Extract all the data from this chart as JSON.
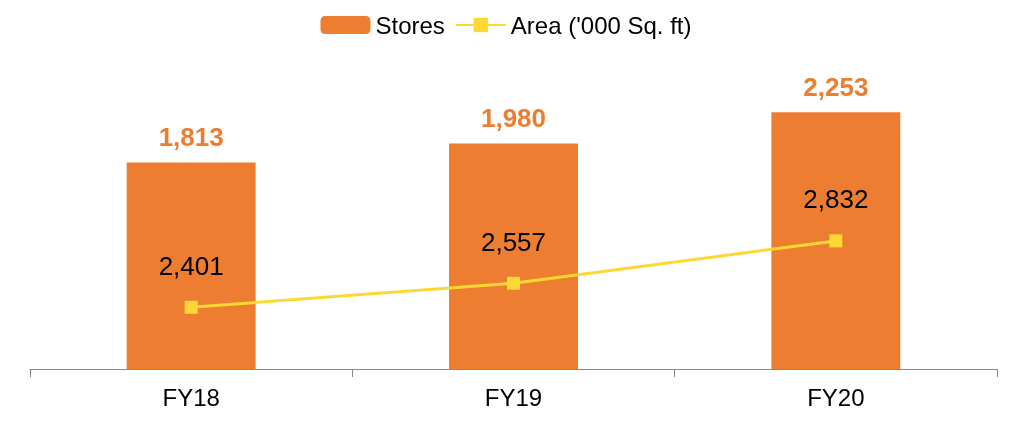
{
  "chart_data": {
    "type": "bar",
    "categories": [
      "FY18",
      "FY19",
      "FY20"
    ],
    "series": [
      {
        "name": "Stores",
        "color": "#ed7d31",
        "values": [
          1813,
          1980,
          2253
        ],
        "value_labels": [
          "1,813",
          "1,980",
          "2,253"
        ]
      },
      {
        "name": "Area ('000 Sq. ft)",
        "type": "line",
        "axis": "y2",
        "color": "#fdd835",
        "values": [
          2401,
          2557,
          2832
        ],
        "value_labels": [
          "2,401",
          "2,557",
          "2,832"
        ]
      }
    ],
    "tick_labels": "x",
    "legend": "top",
    "marker": "square",
    "grid": false
  }
}
